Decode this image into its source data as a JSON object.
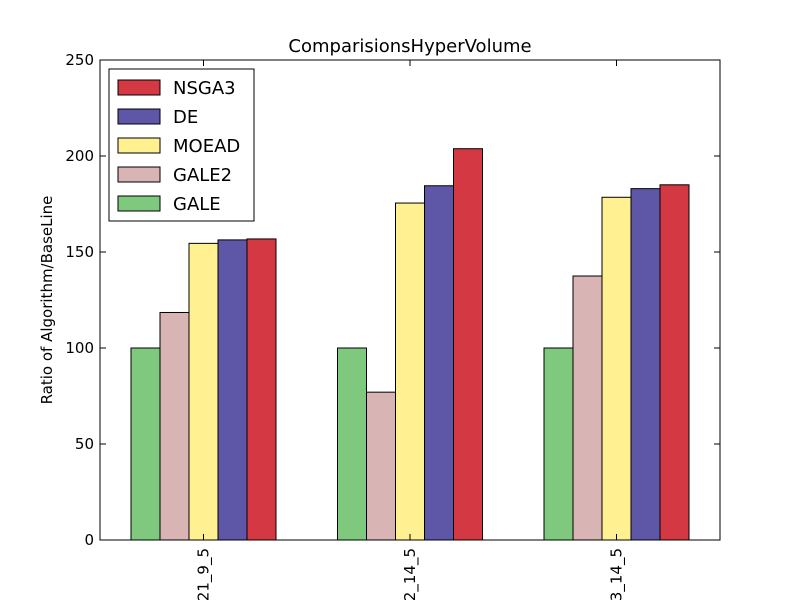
{
  "chart_data": {
    "type": "bar",
    "title": "ComparisionsHyperVolume",
    "xlabel": "",
    "ylabel": "Ratio of Algorithm/BaseLine",
    "categories": [
      "21_9_5",
      "2_14_5",
      "3_14_5"
    ],
    "ylim": [
      0,
      250
    ],
    "yticks": [
      0,
      50,
      100,
      150,
      200,
      250
    ],
    "grid": false,
    "legend_position": "top-left",
    "series": [
      {
        "name": "GALE",
        "color": "#7fc97f",
        "values": [
          100,
          100,
          100
        ]
      },
      {
        "name": "GALE2",
        "color": "#d8b5b4",
        "values": [
          118.5,
          77,
          137.5
        ]
      },
      {
        "name": "MOEAD",
        "color": "#fff191",
        "values": [
          154.5,
          175.5,
          178.5
        ]
      },
      {
        "name": "DE",
        "color": "#5e57a8",
        "values": [
          156.3,
          184.5,
          183
        ]
      },
      {
        "name": "NSGA3",
        "color": "#d33843",
        "values": [
          156.8,
          203.8,
          185
        ]
      }
    ],
    "legend_order": [
      "NSGA3",
      "DE",
      "MOEAD",
      "GALE2",
      "GALE"
    ]
  }
}
